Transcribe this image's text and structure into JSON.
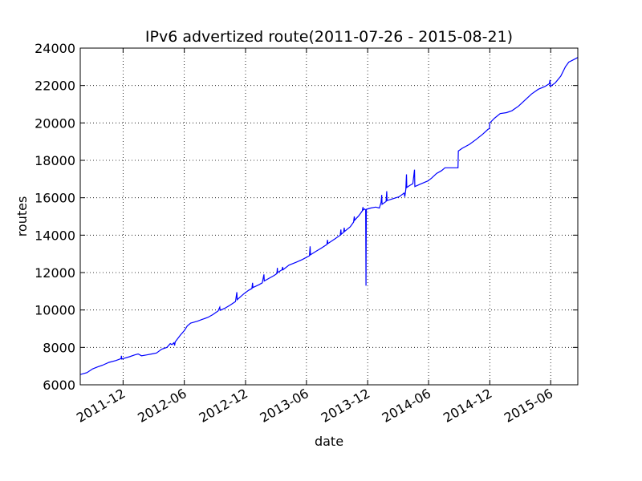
{
  "chart_data": {
    "type": "line",
    "title": "IPv6 advertized route(2011-07-26 - 2015-08-21)",
    "xlabel": "date",
    "ylabel": "routes",
    "xlim": [
      "2011-07-26",
      "2015-08-21"
    ],
    "ylim": [
      6000,
      24000
    ],
    "yticks": [
      6000,
      8000,
      10000,
      12000,
      14000,
      16000,
      18000,
      20000,
      22000,
      24000
    ],
    "xticks": [
      {
        "date": "2011-12-01",
        "label": "2011-12"
      },
      {
        "date": "2012-06-01",
        "label": "2012-06"
      },
      {
        "date": "2012-12-01",
        "label": "2012-12"
      },
      {
        "date": "2013-06-01",
        "label": "2013-06"
      },
      {
        "date": "2013-12-01",
        "label": "2013-12"
      },
      {
        "date": "2014-06-01",
        "label": "2014-06"
      },
      {
        "date": "2014-12-01",
        "label": "2014-12"
      },
      {
        "date": "2015-06-01",
        "label": "2015-06"
      }
    ],
    "grid": true,
    "series": [
      {
        "color": "#0000ff",
        "points": [
          [
            "2011-07-26",
            6550
          ],
          [
            "2011-08-15",
            6650
          ],
          [
            "2011-09-01",
            6850
          ],
          [
            "2011-09-15",
            6950
          ],
          [
            "2011-10-01",
            7050
          ],
          [
            "2011-10-20",
            7200
          ],
          [
            "2011-11-10",
            7300
          ],
          [
            "2011-11-25",
            7400
          ],
          [
            "2011-11-26",
            7550
          ],
          [
            "2011-11-27",
            7380
          ],
          [
            "2011-12-20",
            7500
          ],
          [
            "2012-01-05",
            7600
          ],
          [
            "2012-01-15",
            7650
          ],
          [
            "2012-01-25",
            7550
          ],
          [
            "2012-02-10",
            7600
          ],
          [
            "2012-02-25",
            7650
          ],
          [
            "2012-03-10",
            7700
          ],
          [
            "2012-03-25",
            7900
          ],
          [
            "2012-04-10",
            8000
          ],
          [
            "2012-04-20",
            8200
          ],
          [
            "2012-04-25",
            8150
          ],
          [
            "2012-05-01",
            8250
          ],
          [
            "2012-05-03",
            8100
          ],
          [
            "2012-05-05",
            8300
          ],
          [
            "2012-05-20",
            8650
          ],
          [
            "2012-06-01",
            8900
          ],
          [
            "2012-06-10",
            9150
          ],
          [
            "2012-06-20",
            9300
          ],
          [
            "2012-07-10",
            9400
          ],
          [
            "2012-07-25",
            9500
          ],
          [
            "2012-08-10",
            9600
          ],
          [
            "2012-08-25",
            9750
          ],
          [
            "2012-09-10",
            9950
          ],
          [
            "2012-09-15",
            10150
          ],
          [
            "2012-09-16",
            9980
          ],
          [
            "2012-10-01",
            10100
          ],
          [
            "2012-10-15",
            10250
          ],
          [
            "2012-11-01",
            10450
          ],
          [
            "2012-11-05",
            10950
          ],
          [
            "2012-11-06",
            10550
          ],
          [
            "2012-11-25",
            10850
          ],
          [
            "2012-12-10",
            11050
          ],
          [
            "2012-12-20",
            11150
          ],
          [
            "2012-12-22",
            11450
          ],
          [
            "2012-12-23",
            11200
          ],
          [
            "2013-01-10",
            11350
          ],
          [
            "2013-01-20",
            11450
          ],
          [
            "2013-01-25",
            11900
          ],
          [
            "2013-01-26",
            11550
          ],
          [
            "2013-02-10",
            11700
          ],
          [
            "2013-02-25",
            11850
          ],
          [
            "2013-03-05",
            11950
          ],
          [
            "2013-03-06",
            12250
          ],
          [
            "2013-03-07",
            12000
          ],
          [
            "2013-03-20",
            12150
          ],
          [
            "2013-03-22",
            12300
          ],
          [
            "2013-03-23",
            12150
          ],
          [
            "2013-04-10",
            12400
          ],
          [
            "2013-05-01",
            12550
          ],
          [
            "2013-05-20",
            12700
          ],
          [
            "2013-06-10",
            12900
          ],
          [
            "2013-06-12",
            13400
          ],
          [
            "2013-06-13",
            12950
          ],
          [
            "2013-07-01",
            13150
          ],
          [
            "2013-07-15",
            13300
          ],
          [
            "2013-08-01",
            13500
          ],
          [
            "2013-08-03",
            13750
          ],
          [
            "2013-08-04",
            13550
          ],
          [
            "2013-08-25",
            13800
          ],
          [
            "2013-09-10",
            14000
          ],
          [
            "2013-09-12",
            14300
          ],
          [
            "2013-09-13",
            14050
          ],
          [
            "2013-09-20",
            14150
          ],
          [
            "2013-09-22",
            14400
          ],
          [
            "2013-09-23",
            14200
          ],
          [
            "2013-10-10",
            14450
          ],
          [
            "2013-10-20",
            14700
          ],
          [
            "2013-10-22",
            15000
          ],
          [
            "2013-10-23",
            14800
          ],
          [
            "2013-11-05",
            15050
          ],
          [
            "2013-11-15",
            15300
          ],
          [
            "2013-11-17",
            15500
          ],
          [
            "2013-11-18",
            15350
          ],
          [
            "2013-11-22",
            15400
          ],
          [
            "2013-11-25",
            15350
          ],
          [
            "2013-11-26",
            11300
          ],
          [
            "2013-11-27",
            15380
          ],
          [
            "2013-12-10",
            15450
          ],
          [
            "2013-12-25",
            15500
          ],
          [
            "2014-01-05",
            15450
          ],
          [
            "2014-01-10",
            15750
          ],
          [
            "2014-01-12",
            16150
          ],
          [
            "2014-01-13",
            15650
          ],
          [
            "2014-01-25",
            15800
          ],
          [
            "2014-01-27",
            16350
          ],
          [
            "2014-01-28",
            15850
          ],
          [
            "2014-02-15",
            15950
          ],
          [
            "2014-03-05",
            16050
          ],
          [
            "2014-03-20",
            16250
          ],
          [
            "2014-03-22",
            16050
          ],
          [
            "2014-03-25",
            16450
          ],
          [
            "2014-03-27",
            17250
          ],
          [
            "2014-03-28",
            16550
          ],
          [
            "2014-04-05",
            16650
          ],
          [
            "2014-04-15",
            16750
          ],
          [
            "2014-04-20",
            17500
          ],
          [
            "2014-04-21",
            16600
          ],
          [
            "2014-05-10",
            16750
          ],
          [
            "2014-05-30",
            16900
          ],
          [
            "2014-06-10",
            17050
          ],
          [
            "2014-06-25",
            17300
          ],
          [
            "2014-07-10",
            17450
          ],
          [
            "2014-07-20",
            17600
          ],
          [
            "2014-08-15",
            17600
          ],
          [
            "2014-08-28",
            17600
          ],
          [
            "2014-08-29",
            18500
          ],
          [
            "2014-09-10",
            18650
          ],
          [
            "2014-10-01",
            18850
          ],
          [
            "2014-10-20",
            19100
          ],
          [
            "2014-11-10",
            19400
          ],
          [
            "2014-11-25",
            19650
          ],
          [
            "2014-11-30",
            19700
          ],
          [
            "2014-12-01",
            20000
          ],
          [
            "2014-12-15",
            20250
          ],
          [
            "2015-01-01",
            20500
          ],
          [
            "2015-01-20",
            20550
          ],
          [
            "2015-02-05",
            20650
          ],
          [
            "2015-02-25",
            20900
          ],
          [
            "2015-03-15",
            21200
          ],
          [
            "2015-04-05",
            21550
          ],
          [
            "2015-04-25",
            21800
          ],
          [
            "2015-05-15",
            21950
          ],
          [
            "2015-05-28",
            22100
          ],
          [
            "2015-05-30",
            22300
          ],
          [
            "2015-05-31",
            21950
          ],
          [
            "2015-06-15",
            22150
          ],
          [
            "2015-07-01",
            22500
          ],
          [
            "2015-07-15",
            23000
          ],
          [
            "2015-07-25",
            23250
          ],
          [
            "2015-08-05",
            23350
          ],
          [
            "2015-08-21",
            23500
          ]
        ]
      }
    ]
  }
}
